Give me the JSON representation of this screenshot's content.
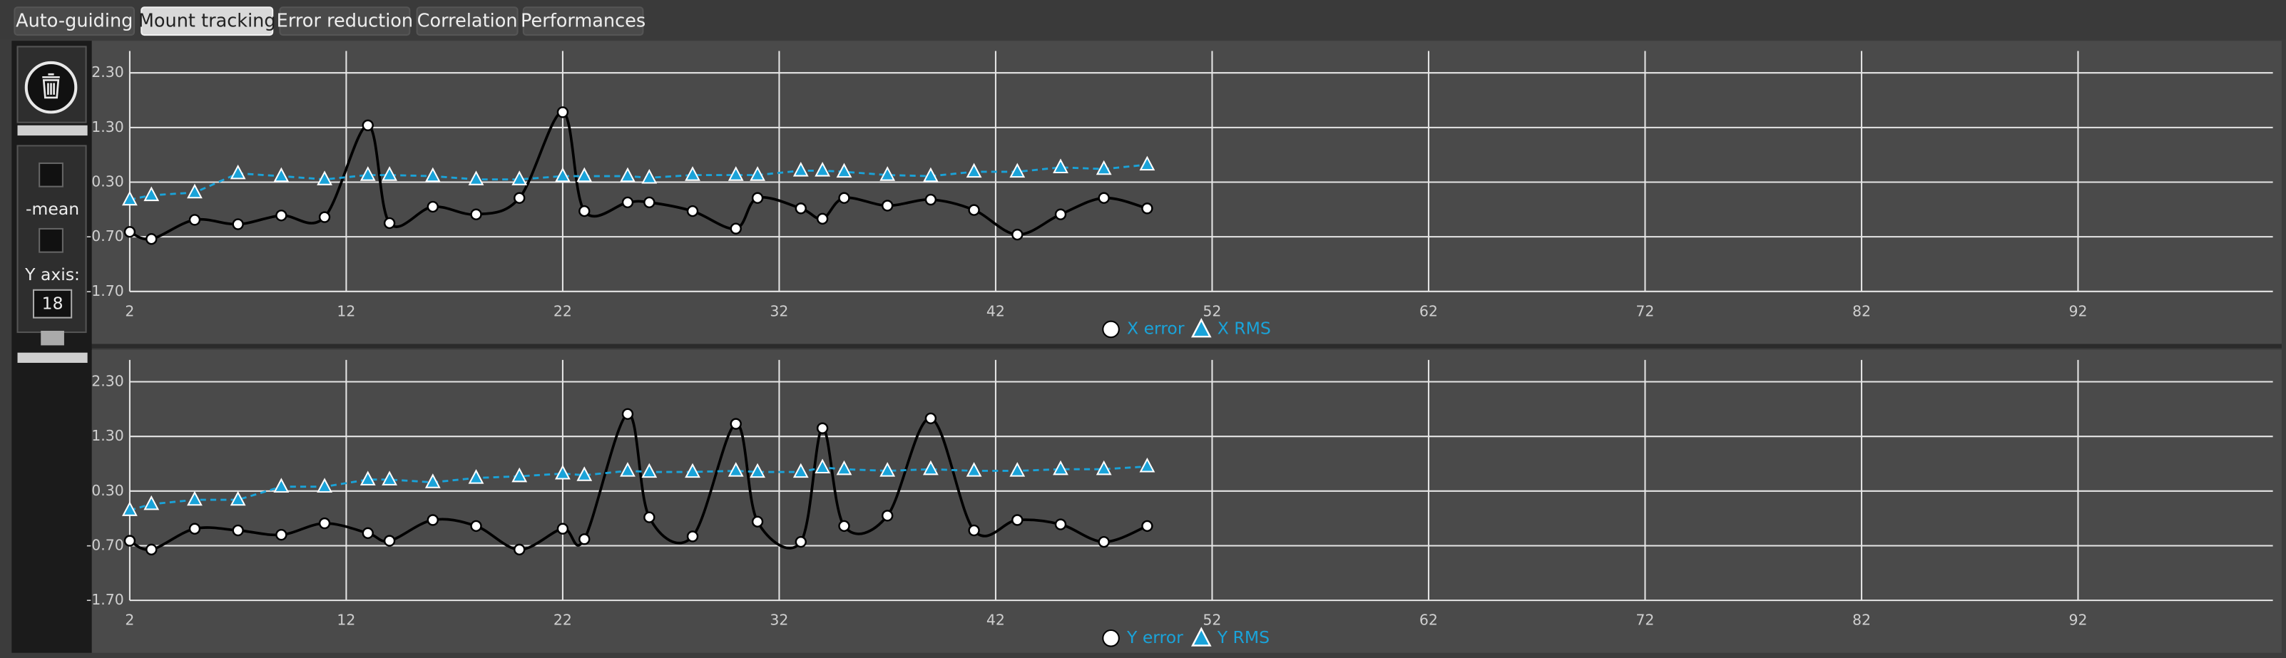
{
  "ui": {
    "tabs": [
      "Auto-guiding",
      "Mount tracking",
      "Error reduction",
      "Correlation",
      "Performances"
    ],
    "active_tab": 1,
    "sidebar": {
      "mean_label": "-mean",
      "y_axis_label": "Y axis:",
      "y_axis_value": 18
    }
  },
  "chart_data": [
    {
      "type": "line",
      "grid": true,
      "x": [
        2,
        3,
        5,
        7,
        9,
        11,
        13,
        14,
        16,
        18,
        20,
        22,
        23,
        25,
        26,
        28,
        30,
        31,
        33,
        34,
        35,
        37,
        39,
        41,
        43,
        45,
        47,
        49
      ],
      "xlim": [
        2,
        101
      ],
      "xticks": [
        2,
        12,
        22,
        32,
        42,
        52,
        62,
        72,
        82,
        92
      ],
      "ylim": [
        -1.7,
        2.7
      ],
      "yticks": [
        {
          "value": -1.7,
          "label": "-1.70"
        },
        {
          "value": -0.7,
          "label": "-0.70"
        },
        {
          "value": 0.3,
          "label": "0.30"
        },
        {
          "value": 1.3,
          "label": "1.30"
        },
        {
          "value": 2.3,
          "label": "2.30"
        }
      ],
      "series": [
        {
          "name": "X error",
          "color": "#000000",
          "marker": "circle",
          "smooth": true,
          "values": [
            -0.61,
            -0.74,
            -0.39,
            -0.47,
            -0.31,
            -0.34,
            1.34,
            -0.45,
            -0.15,
            -0.29,
            0.01,
            1.58,
            -0.23,
            -0.07,
            -0.07,
            -0.23,
            -0.55,
            0.01,
            -0.18,
            -0.37,
            0.01,
            -0.13,
            -0.02,
            -0.21,
            -0.66,
            -0.29,
            0.01,
            -0.18
          ]
        },
        {
          "name": "X RMS",
          "color": "#1aa3d9",
          "marker": "triangle",
          "dashed": true,
          "values": [
            -0.02,
            0.06,
            0.11,
            0.46,
            0.41,
            0.35,
            0.43,
            0.43,
            0.41,
            0.35,
            0.35,
            0.41,
            0.41,
            0.41,
            0.38,
            0.43,
            0.43,
            0.43,
            0.51,
            0.51,
            0.49,
            0.43,
            0.41,
            0.49,
            0.49,
            0.57,
            0.54,
            0.62
          ]
        }
      ]
    },
    {
      "type": "line",
      "grid": true,
      "x": [
        2,
        3,
        5,
        7,
        9,
        11,
        13,
        14,
        16,
        18,
        20,
        22,
        23,
        25,
        26,
        28,
        30,
        31,
        33,
        34,
        35,
        37,
        39,
        41,
        43,
        45,
        47,
        49
      ],
      "xlim": [
        2,
        101
      ],
      "xticks": [
        2,
        12,
        22,
        32,
        42,
        52,
        62,
        72,
        82,
        92
      ],
      "ylim": [
        -1.7,
        2.7
      ],
      "yticks": [
        {
          "value": -1.7,
          "label": "-1.70"
        },
        {
          "value": -0.7,
          "label": "-0.70"
        },
        {
          "value": 0.3,
          "label": "0.30"
        },
        {
          "value": 1.3,
          "label": "1.30"
        },
        {
          "value": 2.3,
          "label": "2.30"
        }
      ],
      "series": [
        {
          "name": "Y error",
          "color": "#000000",
          "marker": "circle",
          "smooth": true,
          "values": [
            -0.61,
            -0.77,
            -0.39,
            -0.42,
            -0.5,
            -0.29,
            -0.47,
            -0.61,
            -0.23,
            -0.34,
            -0.77,
            -0.39,
            -0.58,
            1.71,
            -0.18,
            -0.53,
            1.53,
            -0.26,
            -0.63,
            1.45,
            -0.34,
            -0.15,
            1.63,
            -0.42,
            -0.23,
            -0.31,
            -0.63,
            -0.34
          ]
        },
        {
          "name": "Y RMS",
          "color": "#1aa3d9",
          "marker": "triangle",
          "dashed": true,
          "values": [
            -0.05,
            0.06,
            0.14,
            0.14,
            0.38,
            0.38,
            0.51,
            0.51,
            0.46,
            0.54,
            0.57,
            0.62,
            0.59,
            0.67,
            0.65,
            0.65,
            0.67,
            0.65,
            0.65,
            0.73,
            0.7,
            0.67,
            0.7,
            0.67,
            0.67,
            0.7,
            0.7,
            0.75
          ]
        }
      ]
    }
  ]
}
